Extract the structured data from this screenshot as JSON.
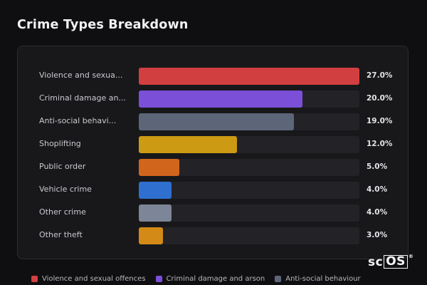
{
  "title": "Crime Types Breakdown",
  "logo": {
    "prefix": "sc",
    "boxed": "OS",
    "mark": "®"
  },
  "chart_data": {
    "type": "bar",
    "orientation": "horizontal",
    "title": "Crime Types Breakdown",
    "xlim": [
      0,
      27
    ],
    "categories": [
      "Violence and sexua...",
      "Criminal damage an...",
      "Anti-social behavi...",
      "Shoplifting",
      "Public order",
      "Vehicle crime",
      "Other crime",
      "Other theft"
    ],
    "values": [
      27.0,
      20.0,
      19.0,
      12.0,
      5.0,
      4.0,
      4.0,
      3.0
    ],
    "value_labels": [
      "27.0%",
      "20.0%",
      "19.0%",
      "12.0%",
      "5.0%",
      "4.0%",
      "4.0%",
      "3.0%"
    ],
    "colors": [
      "#d23f40",
      "#7b4fd8",
      "#5d6678",
      "#cc9b13",
      "#d2651c",
      "#2f6fd0",
      "#7d8698",
      "#d48a16"
    ],
    "legend": {
      "placement": "bottom",
      "entries": [
        {
          "label": "Violence and sexual offences",
          "color": "#d23f40"
        },
        {
          "label": "Criminal damage and arson",
          "color": "#7b4fd8"
        },
        {
          "label": "Anti-social behaviour",
          "color": "#5d6678"
        }
      ]
    }
  }
}
